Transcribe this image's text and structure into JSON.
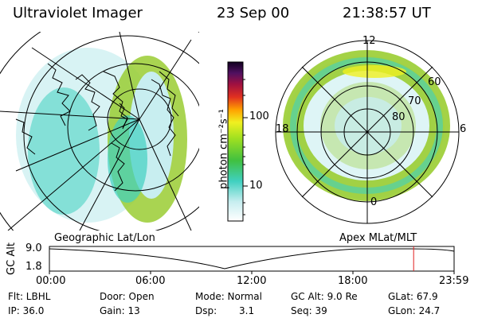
{
  "header": {
    "title": "Ultraviolet Imager",
    "date": "23 Sep 00",
    "time": "21:38:57 UT"
  },
  "colorbar": {
    "unit_label": "photon cm⁻²s⁻¹",
    "tick_100": "100",
    "tick_10": "10"
  },
  "left_panel": {
    "caption": "Geographic Lat/Lon"
  },
  "right_panel": {
    "caption": "Apex MLat/MLT",
    "mlt_labels": {
      "top": "12",
      "left": "18",
      "right": "6",
      "bottom": "0"
    },
    "lat_labels": {
      "lat60": "60",
      "lat70": "70",
      "lat80": "80"
    }
  },
  "altitude_plot": {
    "axis_label": "GC Alt",
    "y_labels": {
      "top": "9.0",
      "bottom": "1.8"
    },
    "x_labels": [
      "00:00",
      "06:00",
      "12:00",
      "18:00",
      "23:59"
    ],
    "current_time_fraction": 0.9
  },
  "status": {
    "flt": "Flt: LBHL",
    "ip": "IP: 36.0",
    "door": "Door: Open",
    "gain": "Gain: 13",
    "mode": "Mode: Normal",
    "dsp_label": "Dsp:",
    "dsp_value": "3.1",
    "gcalt": "GC Alt: 9.0 Re",
    "seq": "Seq: 39",
    "glat": "GLat: 67.9",
    "glon": "GLon: 24.7"
  },
  "colors": {
    "auroral_green": "#9acd32",
    "auroral_cyan": "#40d0c0",
    "marker_red": "#e02020"
  }
}
